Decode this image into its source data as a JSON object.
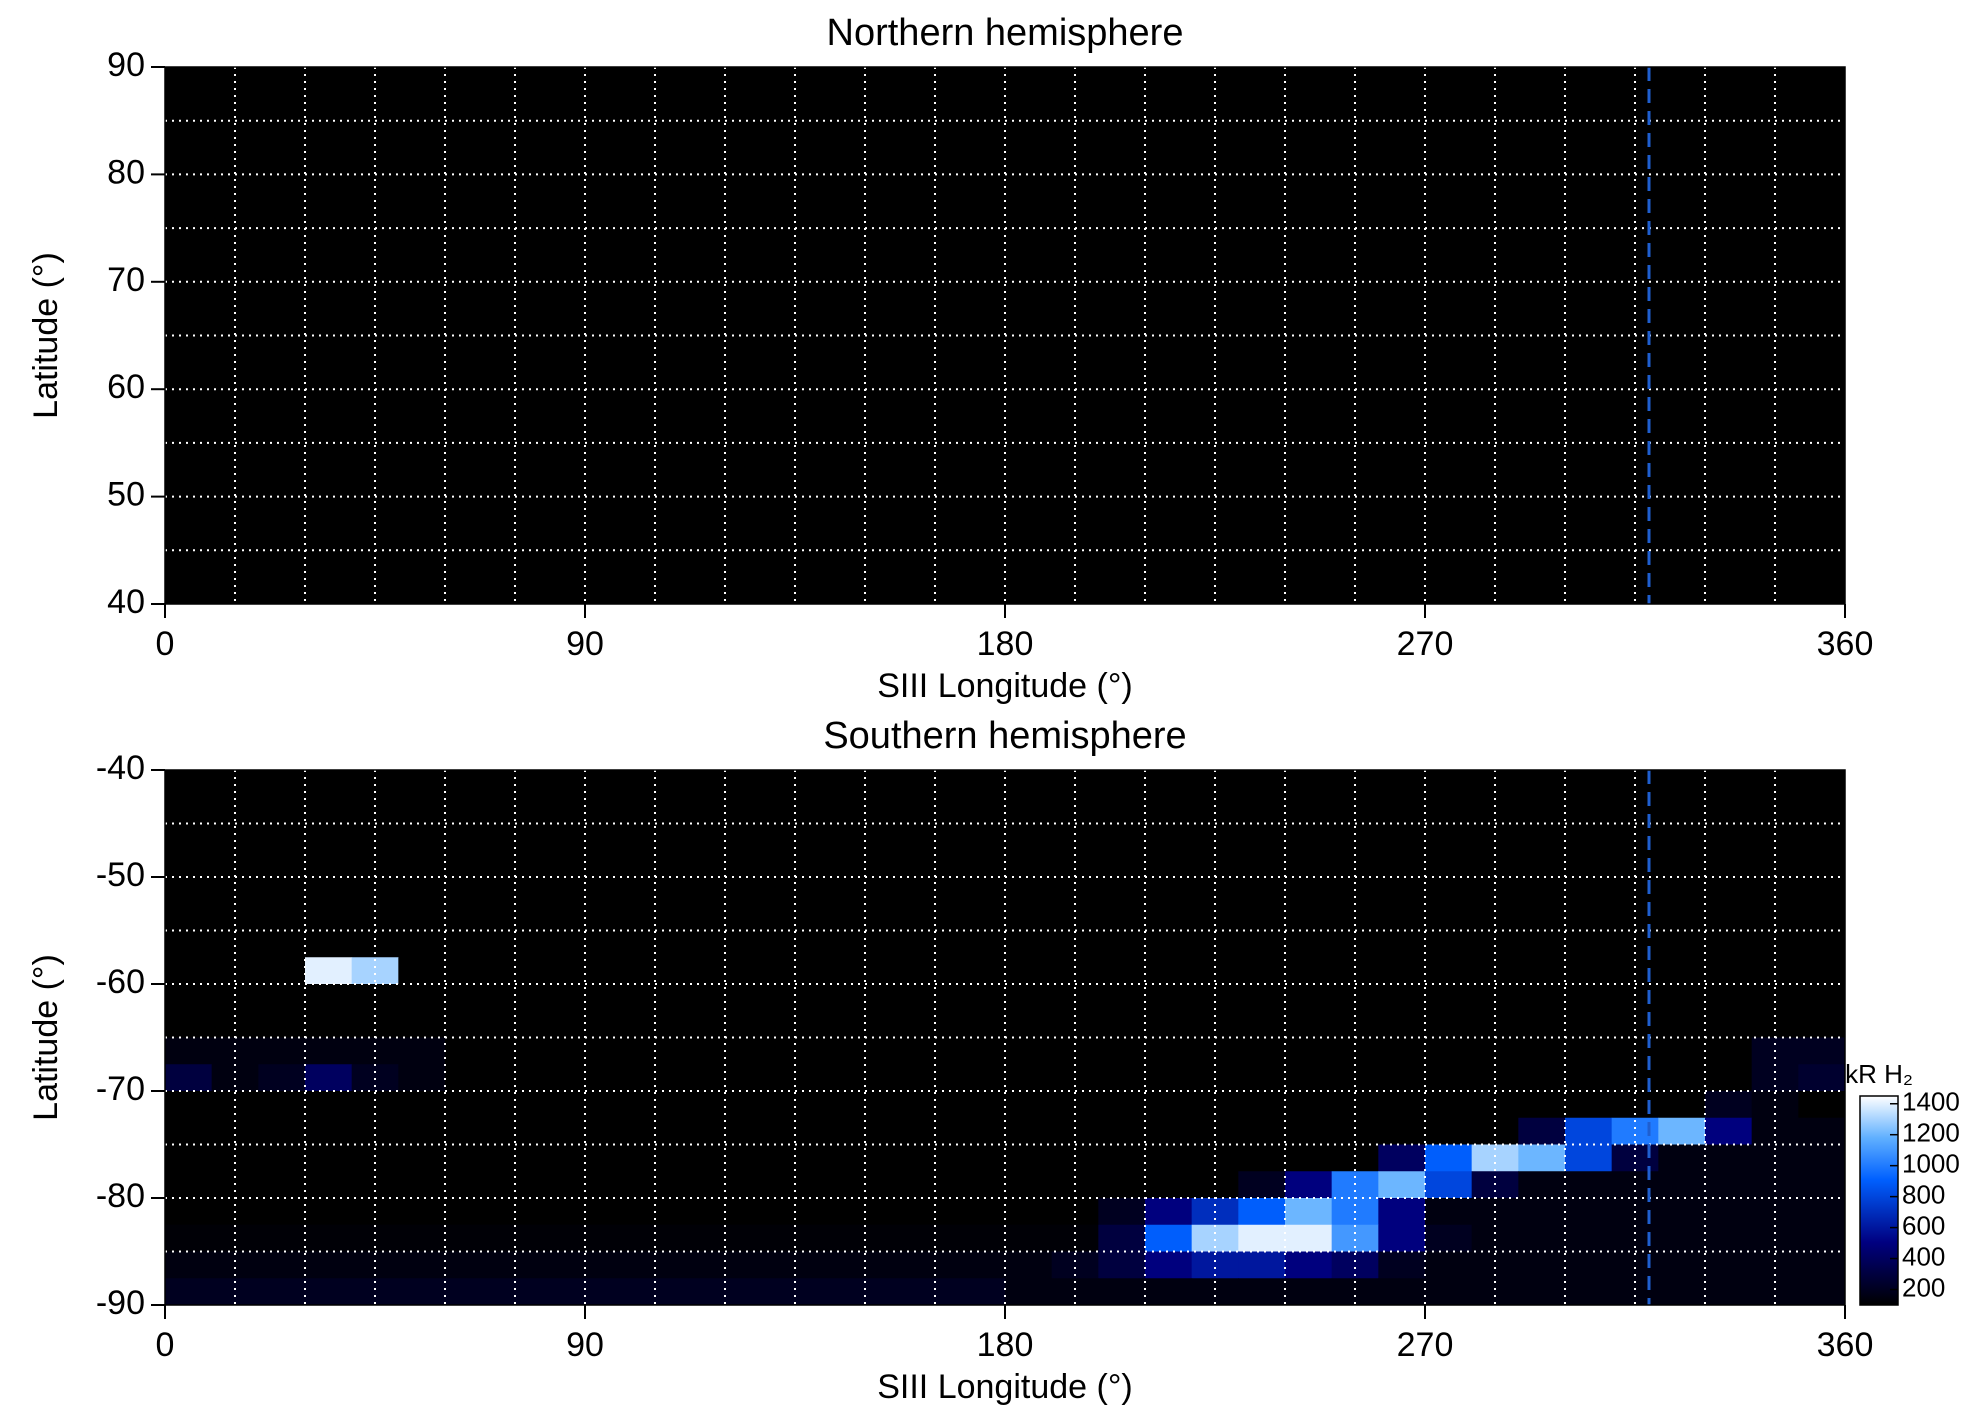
{
  "chart_data": [
    {
      "type": "heatmap",
      "title": "Northern hemisphere",
      "xlabel": "SIII Longitude (°)",
      "ylabel": "Latitude (°)",
      "xlim": [
        0,
        360
      ],
      "ylim": [
        40,
        90
      ],
      "xticks": [
        0,
        90,
        180,
        270,
        360
      ],
      "yticks": [
        40,
        50,
        60,
        70,
        80,
        90
      ],
      "xgrid": [
        15,
        30,
        45,
        60,
        75,
        90,
        105,
        120,
        135,
        150,
        165,
        180,
        195,
        210,
        225,
        240,
        255,
        270,
        285,
        300,
        315,
        330,
        345
      ],
      "ygrid": [
        45,
        50,
        55,
        60,
        65,
        70,
        75,
        80,
        85
      ],
      "vline": 318,
      "vline_color": "#1f5fd0"
    },
    {
      "type": "heatmap",
      "title": "Southern hemisphere",
      "xlabel": "SIII Longitude (°)",
      "ylabel": "Latitude (°)",
      "xlim": [
        0,
        360
      ],
      "ylim": [
        -90,
        -40
      ],
      "xticks": [
        0,
        90,
        180,
        270,
        360
      ],
      "yticks": [
        -90,
        -80,
        -70,
        -60,
        -50,
        -40
      ],
      "xgrid": [
        15,
        30,
        45,
        60,
        75,
        90,
        105,
        120,
        135,
        150,
        165,
        180,
        195,
        210,
        225,
        240,
        255,
        270,
        285,
        300,
        315,
        330,
        345
      ],
      "ygrid": [
        -85,
        -80,
        -75,
        -70,
        -65,
        -60,
        -55,
        -50,
        -45
      ],
      "vline": 318,
      "vline_color": "#1f5fd0",
      "x": [
        5,
        15,
        25,
        35,
        45,
        55,
        65,
        75,
        85,
        95,
        105,
        115,
        125,
        135,
        145,
        155,
        165,
        175,
        185,
        195,
        205,
        215,
        225,
        235,
        245,
        255,
        265,
        275,
        285,
        295,
        305,
        315,
        325,
        335,
        345,
        355
      ],
      "y": [
        -58.75,
        -61.25,
        -63.75,
        -66.25,
        -68.75,
        -71.25,
        -73.75,
        -76.25,
        -78.75,
        -81.25,
        -83.75,
        -86.25,
        -88.75
      ],
      "z": [
        [
          0,
          0,
          0,
          1400,
          1300,
          0,
          0,
          0,
          0,
          0,
          0,
          0,
          0,
          0,
          0,
          0,
          0,
          0,
          0,
          0,
          0,
          0,
          0,
          0,
          0,
          0,
          0,
          0,
          0,
          0,
          0,
          0,
          0,
          0,
          0,
          0
        ],
        [
          0,
          0,
          0,
          0,
          0,
          0,
          0,
          0,
          0,
          0,
          0,
          0,
          0,
          0,
          0,
          0,
          0,
          0,
          0,
          0,
          0,
          0,
          0,
          0,
          0,
          0,
          0,
          0,
          0,
          0,
          0,
          0,
          0,
          0,
          0,
          0
        ],
        [
          0,
          0,
          0,
          0,
          0,
          0,
          0,
          0,
          0,
          0,
          0,
          0,
          0,
          0,
          0,
          0,
          0,
          0,
          0,
          0,
          0,
          0,
          0,
          0,
          0,
          0,
          0,
          0,
          0,
          0,
          0,
          0,
          0,
          0,
          0,
          0
        ],
        [
          150,
          150,
          150,
          150,
          150,
          150,
          0,
          0,
          0,
          0,
          0,
          0,
          0,
          0,
          0,
          0,
          0,
          0,
          0,
          0,
          0,
          0,
          0,
          0,
          0,
          0,
          0,
          0,
          0,
          0,
          0,
          0,
          0,
          0,
          200,
          200
        ],
        [
          300,
          150,
          200,
          400,
          200,
          150,
          0,
          0,
          0,
          0,
          0,
          0,
          0,
          0,
          0,
          0,
          0,
          0,
          0,
          0,
          0,
          0,
          0,
          0,
          0,
          0,
          0,
          0,
          0,
          0,
          0,
          0,
          0,
          0,
          200,
          250
        ],
        [
          100,
          100,
          100,
          100,
          100,
          100,
          0,
          0,
          0,
          0,
          0,
          0,
          0,
          0,
          0,
          0,
          0,
          0,
          0,
          0,
          0,
          0,
          0,
          0,
          0,
          0,
          0,
          0,
          100,
          100,
          100,
          100,
          100,
          200,
          150,
          100
        ],
        [
          0,
          0,
          0,
          0,
          0,
          0,
          0,
          0,
          0,
          0,
          0,
          0,
          0,
          0,
          0,
          0,
          0,
          0,
          0,
          0,
          0,
          0,
          0,
          0,
          0,
          0,
          0,
          0,
          0,
          300,
          800,
          1000,
          1200,
          500,
          150,
          150
        ],
        [
          0,
          0,
          0,
          0,
          0,
          0,
          0,
          0,
          0,
          0,
          0,
          0,
          0,
          0,
          0,
          0,
          0,
          0,
          0,
          0,
          0,
          0,
          0,
          0,
          0,
          0,
          400,
          900,
          1300,
          1200,
          800,
          300,
          150,
          150,
          150,
          150
        ],
        [
          100,
          100,
          100,
          100,
          100,
          100,
          0,
          0,
          0,
          0,
          0,
          0,
          0,
          0,
          0,
          0,
          0,
          0,
          0,
          0,
          0,
          0,
          0,
          200,
          500,
          1000,
          1200,
          800,
          300,
          150,
          150,
          150,
          150,
          150,
          150,
          150
        ],
        [
          100,
          100,
          100,
          100,
          100,
          100,
          100,
          100,
          100,
          100,
          100,
          100,
          100,
          0,
          0,
          0,
          0,
          0,
          0,
          0,
          200,
          500,
          700,
          900,
          1200,
          1000,
          500,
          150,
          150,
          150,
          150,
          150,
          150,
          150,
          150,
          150
        ],
        [
          120,
          120,
          120,
          120,
          120,
          120,
          120,
          120,
          120,
          120,
          120,
          120,
          120,
          120,
          120,
          120,
          120,
          120,
          120,
          120,
          300,
          900,
          1300,
          1400,
          1400,
          1100,
          500,
          200,
          150,
          150,
          150,
          150,
          150,
          150,
          150,
          150
        ],
        [
          150,
          150,
          150,
          150,
          150,
          150,
          150,
          150,
          150,
          150,
          150,
          150,
          150,
          150,
          150,
          150,
          150,
          150,
          150,
          200,
          300,
          500,
          600,
          600,
          500,
          400,
          200,
          150,
          150,
          150,
          150,
          150,
          150,
          150,
          150,
          150
        ],
        [
          200,
          200,
          200,
          200,
          200,
          200,
          200,
          200,
          200,
          200,
          200,
          200,
          200,
          200,
          200,
          200,
          200,
          200,
          150,
          150,
          150,
          150,
          150,
          150,
          150,
          150,
          150,
          150,
          150,
          150,
          150,
          150,
          150,
          150,
          150,
          150
        ]
      ],
      "colorbar": {
        "label": "kR H₂",
        "zlim": [
          100,
          1450
        ],
        "zticks": [
          200,
          400,
          600,
          800,
          1000,
          1200,
          1400
        ]
      }
    }
  ]
}
